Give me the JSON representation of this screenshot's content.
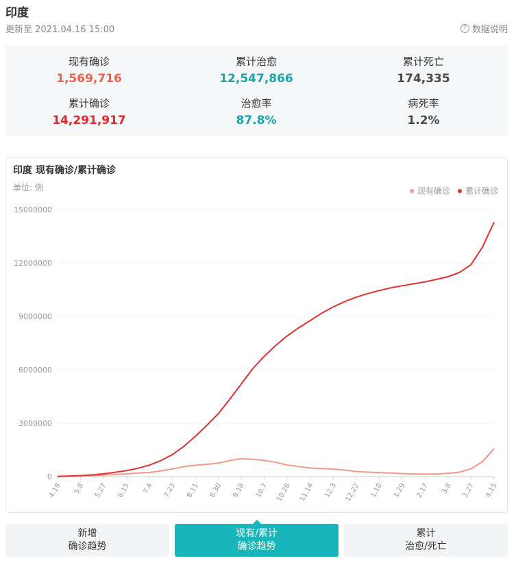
{
  "header": {
    "title": "印度",
    "updated": "更新至 2021.04.16 15:00",
    "help": "数据说明"
  },
  "stats": [
    {
      "label": "现有确诊",
      "value": "1,569,716",
      "color": "#f0604f"
    },
    {
      "label": "累计治愈",
      "value": "12,547,866",
      "color": "#17a4aa"
    },
    {
      "label": "累计死亡",
      "value": "174,335",
      "color": "#4a4a4a"
    },
    {
      "label": "累计确诊",
      "value": "14,291,917",
      "color": "#e3282d"
    },
    {
      "label": "治愈率",
      "value": "87.8%",
      "color": "#17a4aa"
    },
    {
      "label": "病死率",
      "value": "1.2%",
      "color": "#4a4a4a"
    }
  ],
  "chart_data": {
    "type": "line",
    "title": "印度 现有确诊/累计确诊",
    "unit": "单位: 例",
    "categories": [
      "4.19",
      null,
      "5.8",
      null,
      "5.27",
      null,
      "6.15",
      null,
      "7.4",
      null,
      "7.23",
      null,
      "8.11",
      null,
      "8.30",
      null,
      "9.18",
      null,
      "10.7",
      null,
      "10.26",
      null,
      "11.14",
      null,
      "12.3",
      null,
      "12.22",
      null,
      "1.10",
      null,
      "1.29",
      null,
      "2.17",
      null,
      "3.8",
      null,
      "3.27",
      null,
      "4.15"
    ],
    "series": [
      {
        "name": "现有确诊",
        "color": "#f4978b",
        "values": [
          13000,
          22000,
          37000,
          53000,
          87000,
          115000,
          153000,
          200000,
          235000,
          320000,
          425000,
          560000,
          640000,
          690000,
          760000,
          900000,
          1010000,
          970000,
          910000,
          800000,
          650000,
          560000,
          480000,
          450000,
          420000,
          360000,
          290000,
          250000,
          225000,
          200000,
          170000,
          150000,
          138000,
          150000,
          185000,
          250000,
          440000,
          850000,
          1569716
        ]
      },
      {
        "name": "累计确诊",
        "color": "#e0302f",
        "values": [
          17000,
          33000,
          56000,
          95000,
          158000,
          240000,
          333000,
          470000,
          648000,
          900000,
          1240000,
          1700000,
          2270000,
          2880000,
          3540000,
          4350000,
          5210000,
          6070000,
          6760000,
          7370000,
          7910000,
          8360000,
          8770000,
          9180000,
          9530000,
          9830000,
          10080000,
          10280000,
          10450000,
          10600000,
          10720000,
          10830000,
          10940000,
          11080000,
          11230000,
          11470000,
          11910000,
          12900000,
          14291917
        ]
      }
    ],
    "ylim": [
      0,
      15000000
    ],
    "yticks": [
      0,
      3000000,
      6000000,
      9000000,
      12000000,
      15000000
    ],
    "grid": true,
    "legend": "top-right"
  },
  "tabs": [
    [
      "新增",
      "确诊趋势"
    ],
    [
      "现有/累计",
      "确诊趋势"
    ],
    [
      "累计",
      "治愈/死亡"
    ]
  ],
  "active_tab": 1
}
